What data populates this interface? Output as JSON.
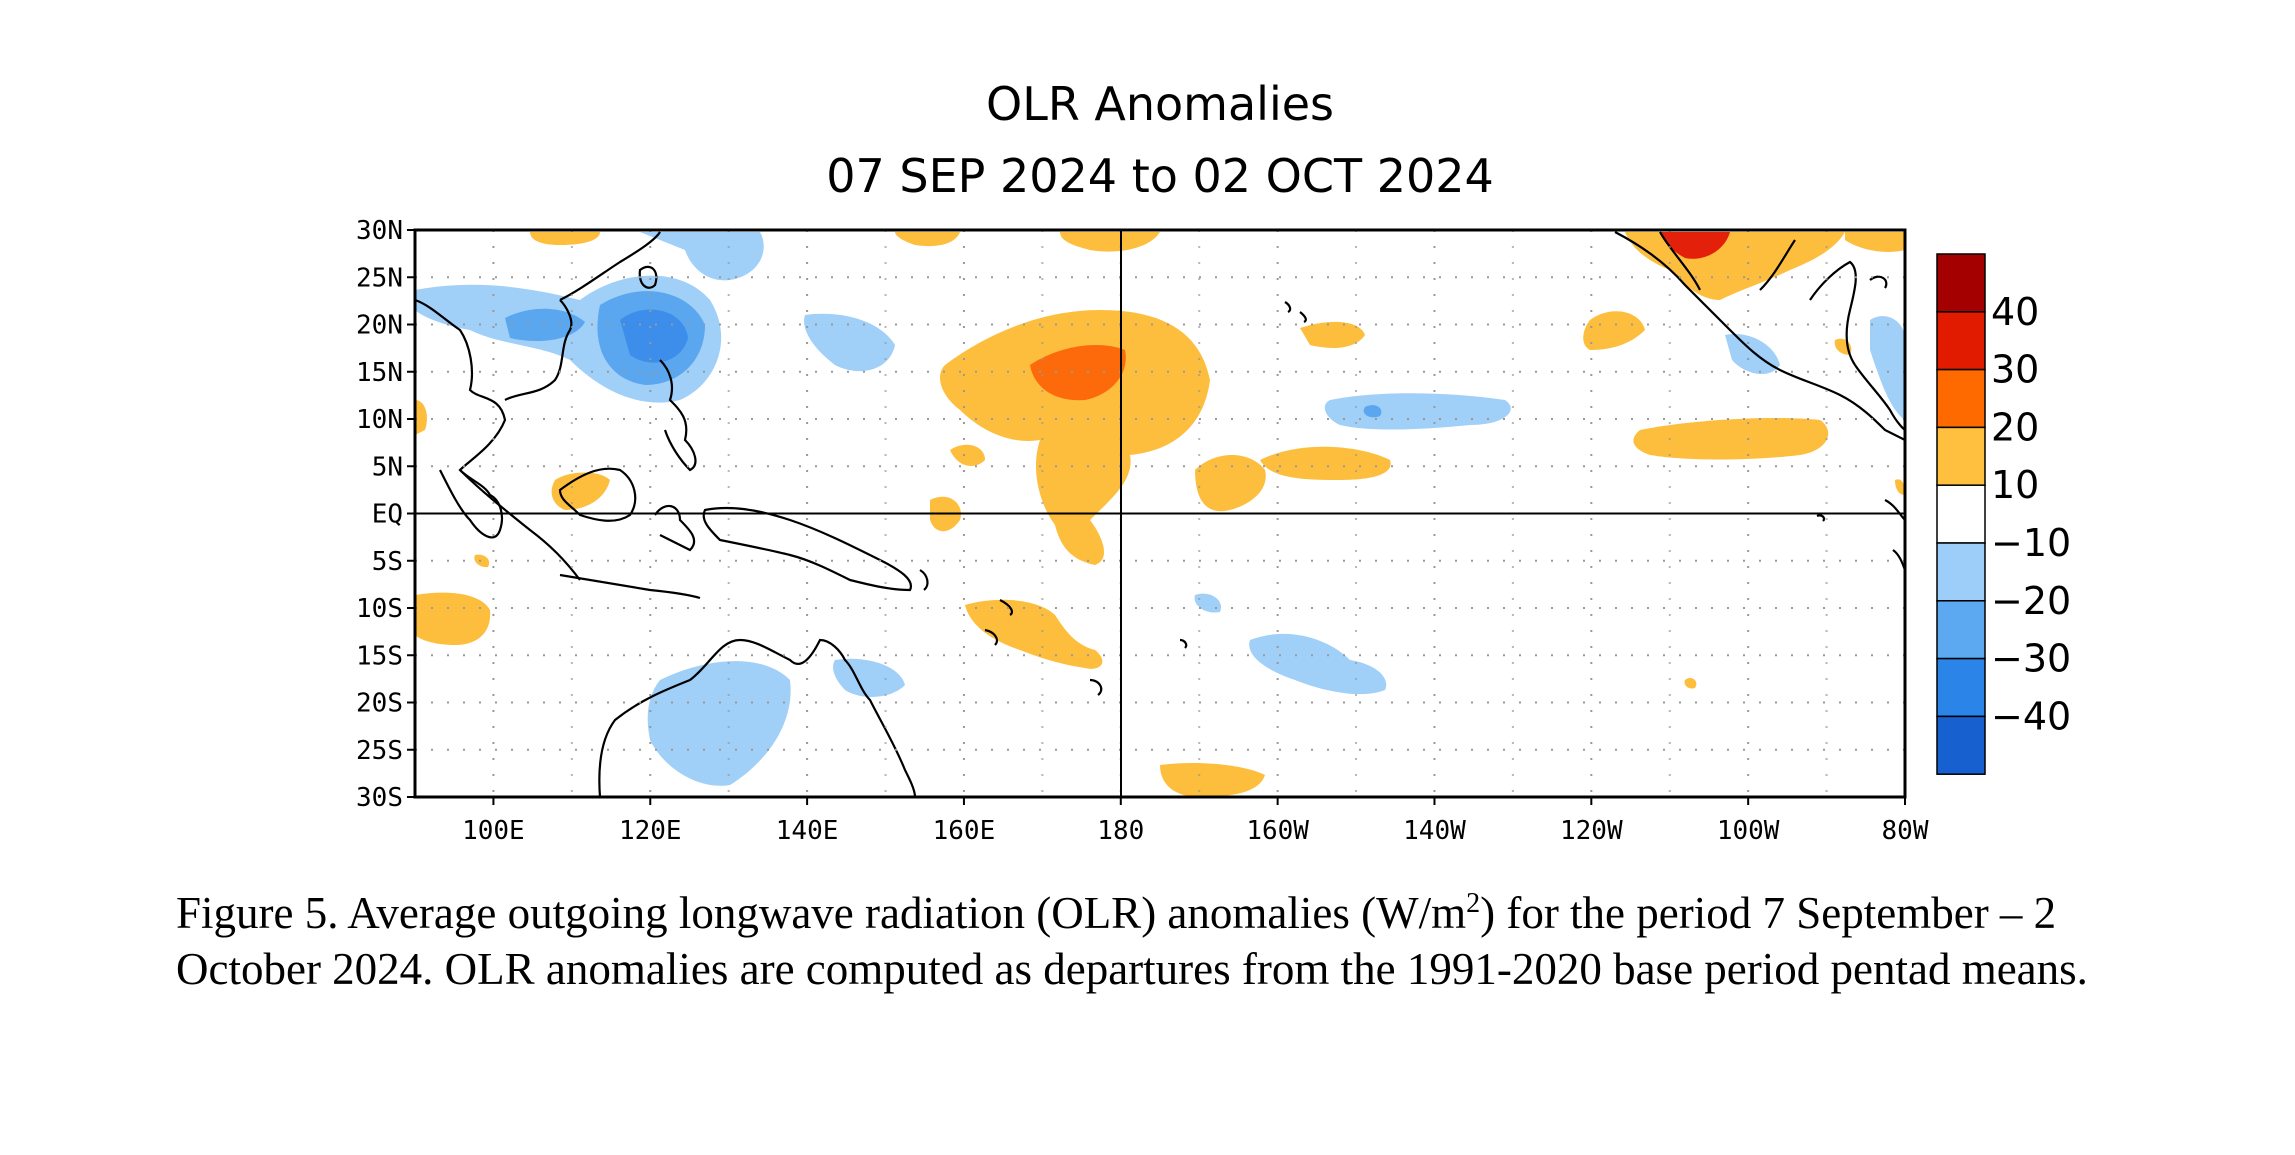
{
  "figure": {
    "title": "OLR Anomalies",
    "subtitle": "07 SEP 2024 to 02 OCT 2024",
    "lat_labels": [
      "30N",
      "25N",
      "20N",
      "15N",
      "10N",
      "5N",
      "EQ",
      "5S",
      "10S",
      "15S",
      "20S",
      "25S",
      "30S"
    ],
    "lon_labels": [
      "100E",
      "120E",
      "140E",
      "160E",
      "180",
      "160W",
      "140W",
      "120W",
      "100W",
      "80W"
    ],
    "colorbar": {
      "labels": [
        "40",
        "30",
        "20",
        "10",
        "−10",
        "−20",
        "−30",
        "−40"
      ],
      "colors": [
        "#a50000",
        "#e01b00",
        "#ff6a00",
        "#ffbf3f",
        "#ffffff",
        "#9dcdf9",
        "#5ca9f2",
        "#2b84e8",
        "#1760d0"
      ]
    },
    "anomaly_colors": {
      "pos10": "#fdbe3e",
      "pos20": "#fd6a0b",
      "pos30": "#e3200a",
      "neg10": "#a0cff8",
      "neg20": "#5aa6ef",
      "neg30": "#3d8eea"
    }
  },
  "caption": {
    "part1": "Figure 5. Average outgoing longwave radiation (OLR) anomalies (W/m",
    "sup": "2",
    "part2": ") for the period 7 September – 2 October 2024.  OLR anomalies are computed as departures from the 1991-2020 base period pentad means."
  }
}
